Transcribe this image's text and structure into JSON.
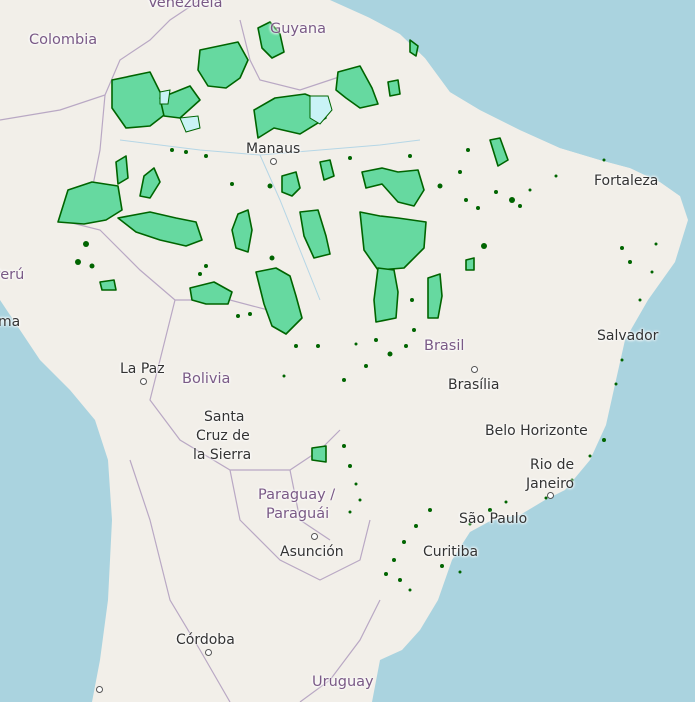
{
  "map": {
    "colors": {
      "ocean": "#aad3df",
      "land": "#f2efe9",
      "border": "#b9a8c4",
      "protected_fill": "#66d9a0",
      "protected_stroke": "#006400",
      "lake": "#c9f3f6"
    },
    "labels": {
      "venezuela": "Venezuela",
      "colombia": "Colombia",
      "guyana": "Guyana",
      "peru": "Perú",
      "bolivia": "Bolivia",
      "brasil": "Brasil",
      "paraguay": "Paraguay /",
      "paraguai": "Paraguái",
      "uruguay": "Uruguay",
      "manaus": "Manaus",
      "fortaleza": "Fortaleza",
      "salvador": "Salvador",
      "la_paz": "La Paz",
      "santa_cruz_1": "Santa",
      "santa_cruz_2": "Cruz de",
      "santa_cruz_3": "la Sierra",
      "brasilia": "Brasília",
      "belo_horizonte": "Belo Horizonte",
      "rio_1": "Rio de",
      "rio_2": "Janeiro",
      "sao_paulo": "São Paulo",
      "asuncion": "Asunción",
      "curitiba": "Curitiba",
      "cordoba": "Córdoba",
      "lima_partial": "ma"
    }
  }
}
